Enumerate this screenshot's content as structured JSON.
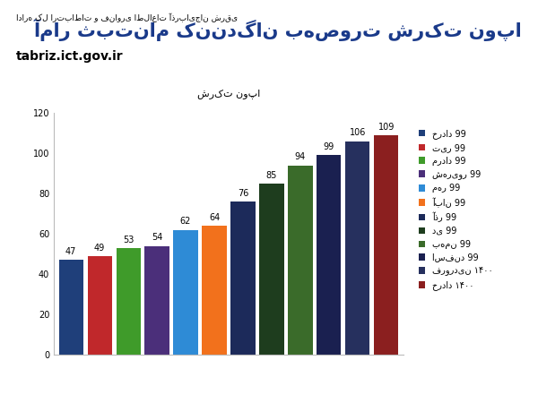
{
  "header": {
    "title": "آمار ثبت‌نام کنندگان به‌صورت شرکت نوپا",
    "organization": "اداره کل ارتباطات و فناوری اطلاعات آذربایجان شرقی",
    "website": "tabriz.ict.gov.ir"
  },
  "chart_data": {
    "type": "bar",
    "title": "شرکت نوپا",
    "categories": [
      "خرداد 99",
      "تیر 99",
      "مرداد 99",
      "شهریور 99",
      "مهر 99",
      "آبان 99",
      "آذر 99",
      "دی 99",
      "بهمن 99",
      "اسفند 99",
      "فروردین ۱۴۰۰",
      "خرداد ۱۴۰۰"
    ],
    "values": [
      47,
      49,
      53,
      54,
      62,
      64,
      76,
      85,
      94,
      99,
      106,
      109
    ],
    "colors": [
      "#1f3f7a",
      "#c0282b",
      "#3f9b2a",
      "#4b2f7a",
      "#2e8bd6",
      "#f2711c",
      "#1c2a5a",
      "#1e3d1e",
      "#3a6b2a",
      "#1a2050",
      "#26305e",
      "#8b1f1f"
    ],
    "ylim": [
      0,
      120
    ],
    "yticks": [
      0,
      20,
      40,
      60,
      80,
      100,
      120
    ],
    "grid": false,
    "data_labels": true,
    "tick_labels": "y",
    "legend": "right"
  }
}
